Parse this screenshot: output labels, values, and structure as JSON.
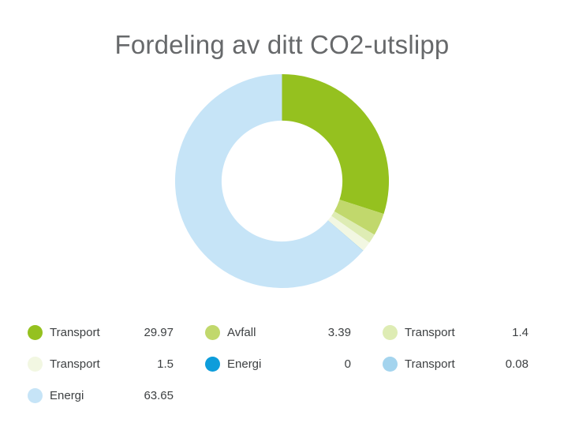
{
  "title": "Fordeling av ditt CO2-utslipp",
  "chart_data": {
    "type": "pie",
    "donut": true,
    "title": "Fordeling av ditt CO2-utslipp",
    "start_angle_deg": 0,
    "direction": "clockwise",
    "legend_position": "bottom",
    "total": 99.99,
    "slices": [
      {
        "label": "Transport",
        "value": 29.97,
        "display": "29.97",
        "color": "#95c11f"
      },
      {
        "label": "Avfall",
        "value": 3.39,
        "display": "3.39",
        "color": "#c1d86c"
      },
      {
        "label": "Transport",
        "value": 1.4,
        "display": "1.4",
        "color": "#deecb4"
      },
      {
        "label": "Transport",
        "value": 1.5,
        "display": "1.5",
        "color": "#f2f7e2"
      },
      {
        "label": "Energi",
        "value": 0,
        "display": "0",
        "color": "#0d9ddb"
      },
      {
        "label": "Transport",
        "value": 0.08,
        "display": "0.08",
        "color": "#a4d4ee"
      },
      {
        "label": "Energi",
        "value": 63.65,
        "display": "63.65",
        "color": "#c6e4f7"
      }
    ]
  }
}
